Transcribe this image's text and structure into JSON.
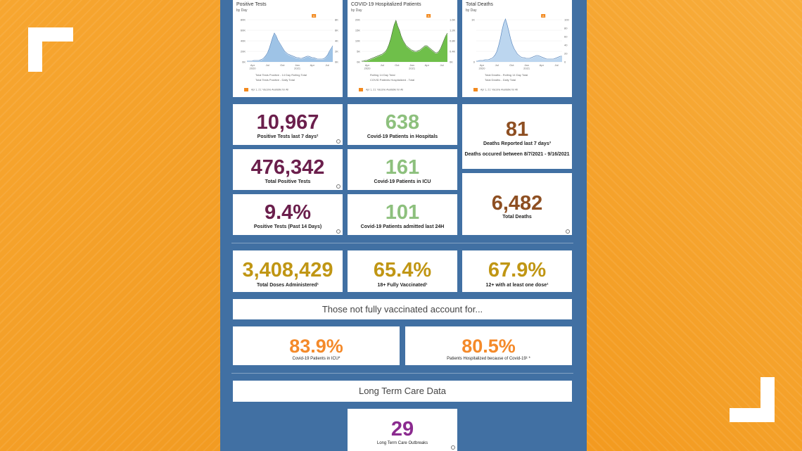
{
  "charts": [
    {
      "title": "Positive Tests",
      "subtitle": "by Day",
      "y_left_ticks": [
        "80K",
        "60K",
        "40K",
        "20K",
        "0K"
      ],
      "y_right_ticks": [
        "8K",
        "6K",
        "4K",
        "2K",
        "0K"
      ],
      "x_ticks": [
        "Apr\n2020",
        "Jul",
        "Oct",
        "Jan\n2021",
        "Apr",
        "Jul"
      ],
      "legend": [
        "Total Tests Positive - 14 Day Rolling Total",
        "Total Tests Positive - Daily Total"
      ],
      "footnote": "Apr 1, 21: Vaccine Available for All",
      "color": "#9ec3e6",
      "line_color": "#5a88bf"
    },
    {
      "title": "COVID-19 Hospitalized Patients",
      "subtitle": "by Day",
      "y_left_ticks": [
        "20K",
        "15K",
        "10K",
        "5K",
        "0K"
      ],
      "y_right_ticks": [
        "1.6K",
        "1.2K",
        "0.8K",
        "0.4K",
        "0K"
      ],
      "x_ticks": [
        "Apr\n2020",
        "Jul",
        "Oct",
        "Jan\n2021",
        "Apr",
        "Jul"
      ],
      "legend": [
        "Rolling 14 Day Total",
        "COVID Patients Hospitalized - Total"
      ],
      "footnote": "Apr 1, 21: Vaccine Available for All",
      "color": "#6fbf4a",
      "line_color": "#3f6f2c"
    },
    {
      "title": "Total Deaths",
      "subtitle": "by Day",
      "y_left_ticks": [
        "1K",
        "",
        "",
        "",
        "0"
      ],
      "y_right_ticks": [
        "100",
        "80",
        "60",
        "40",
        "20",
        "0"
      ],
      "x_ticks": [
        "Apr\n2020",
        "Jul",
        "Oct",
        "Jan\n2021",
        "Apr",
        "Jul"
      ],
      "legend": [
        "Total Deaths - Rolling 14 Day Total",
        "Total Deaths - Daily Total"
      ],
      "footnote": "Apr 1, 21: Vaccine Available for All",
      "color": "#bcd6ef",
      "line_color": "#5a88bf"
    }
  ],
  "stats": {
    "positive_7": {
      "value": "10,967",
      "label": "Positive Tests last 7 days²"
    },
    "total_positive": {
      "value": "476,342",
      "label": "Total Positive Tests"
    },
    "positive_pct": {
      "value": "9.4%",
      "label": "Positive Tests (Past 14 Days)"
    },
    "hosp": {
      "value": "638",
      "label": "Covid-19 Patients in Hospitals"
    },
    "icu": {
      "value": "161",
      "label": "Covid-19 Patients in ICU"
    },
    "admitted": {
      "value": "101",
      "label": "Covid-19 Patients admitted last 24H"
    },
    "deaths_7": {
      "value": "81",
      "label": "Deaths Reported last 7 days³",
      "note": "Deaths occured between 8/7/2021 - 9/16/2021"
    },
    "total_deaths": {
      "value": "6,482",
      "label": "Total Deaths"
    },
    "doses": {
      "value": "3,408,429",
      "label": "Total Doses Administered¹"
    },
    "fully_vax": {
      "value": "65.4%",
      "label": "18+ Fully Vaccinated¹"
    },
    "one_dose": {
      "value": "67.9%",
      "label": "12+ with at least one dose¹"
    },
    "unvax_icu": {
      "value": "83.9%",
      "label": "Covid-19 Patients in ICU*"
    },
    "unvax_hosp": {
      "value": "80.5%",
      "label": "Patients Hospitalized because of Covid-19¹ *"
    },
    "ltc": {
      "value": "29",
      "label": "Long Term Care Outbreaks"
    }
  },
  "banners": {
    "not_vaccinated": "Those not fully vaccinated account for...",
    "ltc": "Long Term Care Data"
  },
  "flag_marker": "A"
}
